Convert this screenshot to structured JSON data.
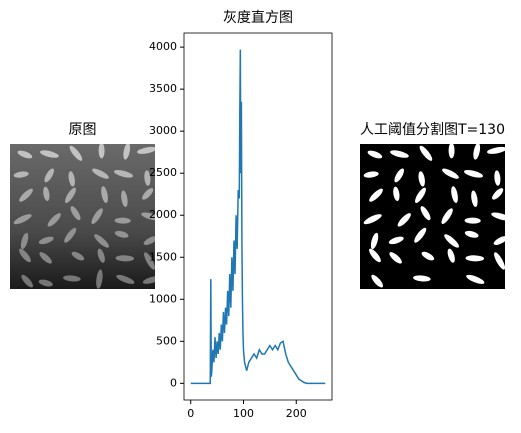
{
  "chart_data": [
    {
      "type": "image",
      "title": "原图"
    },
    {
      "type": "line",
      "title": "灰度直方图",
      "x": [
        0,
        37,
        38,
        39,
        40,
        42,
        44,
        46,
        48,
        50,
        52,
        54,
        56,
        58,
        60,
        62,
        64,
        66,
        68,
        70,
        72,
        74,
        76,
        78,
        80,
        82,
        84,
        86,
        88,
        90,
        92,
        93,
        94,
        95,
        96,
        97,
        98,
        99,
        100,
        102,
        104,
        106,
        110,
        115,
        120,
        125,
        130,
        135,
        140,
        145,
        150,
        155,
        160,
        165,
        170,
        175,
        180,
        185,
        190,
        195,
        200,
        205,
        210,
        215,
        220,
        255
      ],
      "values": [
        0,
        0,
        1240,
        80,
        150,
        400,
        250,
        550,
        300,
        500,
        350,
        600,
        400,
        700,
        500,
        850,
        600,
        900,
        700,
        1100,
        800,
        1300,
        900,
        1500,
        1100,
        1700,
        1300,
        2000,
        1600,
        2300,
        2200,
        3200,
        3970,
        2500,
        3350,
        1700,
        1000,
        600,
        400,
        250,
        200,
        150,
        250,
        300,
        350,
        300,
        400,
        350,
        350,
        400,
        450,
        400,
        450,
        400,
        480,
        500,
        350,
        250,
        200,
        150,
        100,
        50,
        30,
        10,
        0,
        0
      ],
      "color": "#1f77b4",
      "xlim": [
        -12.75,
        267.75
      ],
      "xticks": [
        0,
        100,
        200
      ],
      "ylim": [
        -198,
        4168
      ],
      "yticks": [
        0,
        500,
        1000,
        1500,
        2000,
        2500,
        3000,
        3500,
        4000
      ]
    },
    {
      "type": "image",
      "title": "人工阈值分割图T=130",
      "threshold_view": true
    }
  ]
}
